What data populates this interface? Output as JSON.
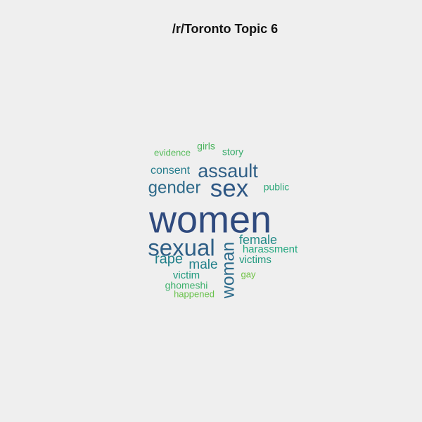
{
  "chart_data": {
    "type": "wordcloud",
    "title": "/r/Toronto Topic 6",
    "words": [
      {
        "text": "women",
        "weight": 100,
        "color": "#2f4a7e"
      },
      {
        "text": "sex",
        "weight": 68,
        "color": "#2e5784"
      },
      {
        "text": "sexual",
        "weight": 62,
        "color": "#2e5f86"
      },
      {
        "text": "woman",
        "weight": 47,
        "color": "#2b6a8a"
      },
      {
        "text": "assault",
        "weight": 50,
        "color": "#2f5f86"
      },
      {
        "text": "gender",
        "weight": 44,
        "color": "#2e6a8a"
      },
      {
        "text": "rape",
        "weight": 37,
        "color": "#22808a"
      },
      {
        "text": "male",
        "weight": 36,
        "color": "#22808a"
      },
      {
        "text": "female",
        "weight": 34,
        "color": "#238a87"
      },
      {
        "text": "consent",
        "weight": 31,
        "color": "#257c8c"
      },
      {
        "text": "victims",
        "weight": 30,
        "color": "#209a7e"
      },
      {
        "text": "victim",
        "weight": 29,
        "color": "#209a7e"
      },
      {
        "text": "harassment",
        "weight": 28,
        "color": "#24a880"
      },
      {
        "text": "public",
        "weight": 26,
        "color": "#2ea87a"
      },
      {
        "text": "story",
        "weight": 26,
        "color": "#39ac6c"
      },
      {
        "text": "ghomeshi",
        "weight": 25,
        "color": "#3bb06a"
      },
      {
        "text": "girls",
        "weight": 24,
        "color": "#49b45c"
      },
      {
        "text": "evidence",
        "weight": 24,
        "color": "#52ba56"
      },
      {
        "text": "happened",
        "weight": 23,
        "color": "#67c14a"
      },
      {
        "text": "gay",
        "weight": 22,
        "color": "#6fc245"
      }
    ]
  }
}
